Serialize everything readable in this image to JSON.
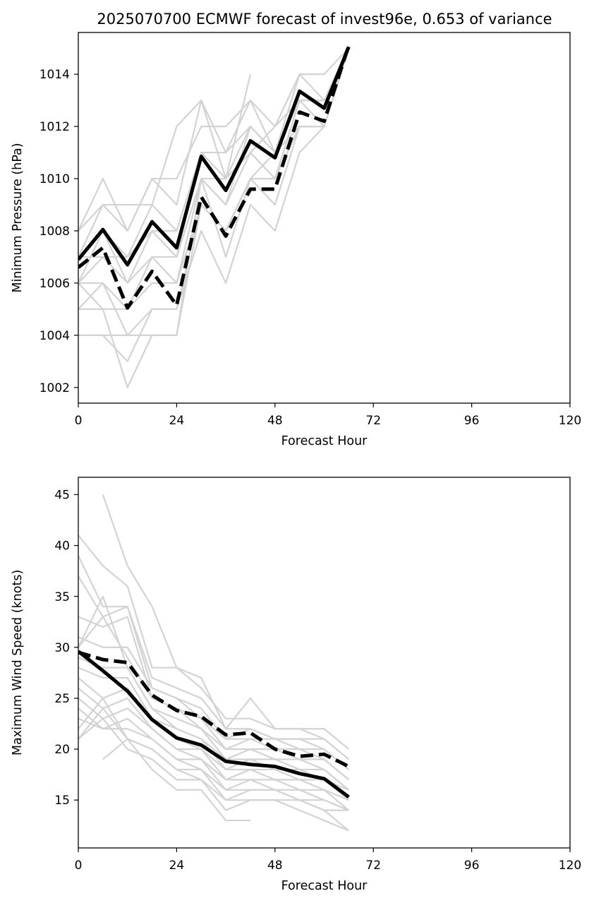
{
  "chart_data": [
    {
      "type": "line",
      "title": "2025070700 ECMWF forecast of invest96e, 0.653 of variance",
      "xlabel": "Forecast Hour",
      "ylabel": "Minimum Pressure (hPa)",
      "xlim": [
        0,
        120
      ],
      "ylim": [
        1001.4,
        1015.6
      ],
      "xticks": [
        "0",
        "24",
        "48",
        "72",
        "96",
        "120"
      ],
      "yticks": [
        "1002",
        "1004",
        "1006",
        "1008",
        "1010",
        "1012",
        "1014"
      ],
      "colors": {
        "ensemble": "#d3d3d3",
        "mean": "#000000"
      },
      "x": [
        0,
        6,
        12,
        18,
        24,
        30,
        36,
        42,
        48,
        54,
        60,
        66
      ],
      "series": [
        {
          "style": "solid",
          "values": [
            1006.9,
            1008.05,
            1006.7,
            1008.35,
            1007.35,
            1010.85,
            1009.55,
            1011.45,
            1010.8,
            1013.35,
            1012.7,
            1015.05
          ]
        },
        {
          "style": "dashed",
          "values": [
            1006.6,
            1007.35,
            1005.05,
            1006.45,
            1005.15,
            1009.3,
            1007.8,
            1009.6,
            1009.6,
            1012.55,
            1012.2,
            1015.1
          ]
        }
      ],
      "ensemble": [
        [
          1008,
          1010,
          1008,
          1010,
          1009,
          1013,
          1010,
          1014
        ],
        [
          1007,
          1009,
          1009,
          1009,
          1012,
          1013,
          1011,
          1013,
          1012,
          1014,
          1014,
          1015
        ],
        [
          1008,
          1009,
          1008,
          1010,
          1010,
          1012,
          1012,
          1013,
          1011,
          1013,
          1013,
          1015
        ],
        [
          1007,
          1008,
          1007,
          1009,
          1008,
          1011,
          1011,
          1012,
          1011,
          1013,
          1013,
          1015
        ],
        [
          1007,
          1008,
          1007,
          1008,
          1008,
          1011,
          1010,
          1012,
          1011,
          1014,
          1013,
          1015
        ],
        [
          1006,
          1008,
          1006,
          1008,
          1007,
          1011,
          1010,
          1011,
          1012,
          1013,
          1013,
          1015
        ],
        [
          1007,
          1007,
          1007,
          1008,
          1007,
          1010,
          1009,
          1012,
          1011,
          1013,
          1013,
          1015
        ],
        [
          1006,
          1007,
          1006,
          1007,
          1007,
          1010,
          1010,
          1011,
          1010,
          1013,
          1012,
          1015
        ],
        [
          1005,
          1006,
          1005,
          1007,
          1006,
          1010,
          1009,
          1011,
          1010,
          1013,
          1013,
          1015
        ],
        [
          1005,
          1005,
          1005,
          1006,
          1006,
          1009,
          1008,
          1010,
          1010,
          1012,
          1012,
          1015
        ],
        [
          1004,
          1004,
          1003,
          1005,
          1005,
          1009,
          1008,
          1010,
          1009,
          1012,
          1012,
          1015
        ],
        [
          1006,
          1006,
          1004,
          1005,
          1005,
          1008,
          1006,
          1009,
          1008,
          1011,
          1012,
          1015
        ],
        [
          1006,
          1005,
          1002,
          1004,
          1004,
          1010,
          1007,
          1010,
          1010,
          1012,
          1012,
          1015
        ],
        [
          1004,
          1004,
          1004,
          1004,
          1004,
          1009,
          1008,
          1010,
          1011,
          1012,
          1012,
          1015
        ]
      ]
    },
    {
      "type": "line",
      "title": "",
      "xlabel": "Forecast Hour",
      "ylabel": "Maximum Wind Speed (knots)",
      "xlim": [
        0,
        120
      ],
      "ylim": [
        10.3,
        46.7
      ],
      "xticks": [
        "0",
        "24",
        "48",
        "72",
        "96",
        "120"
      ],
      "yticks": [
        "15",
        "20",
        "25",
        "30",
        "35",
        "40",
        "45"
      ],
      "colors": {
        "ensemble": "#d3d3d3",
        "mean": "#000000"
      },
      "x": [
        0,
        6,
        12,
        18,
        24,
        30,
        36,
        42,
        48,
        54,
        60,
        66
      ],
      "series": [
        {
          "style": "solid",
          "values": [
            29.6,
            27.7,
            25.7,
            22.9,
            21.1,
            20.4,
            18.8,
            18.5,
            18.3,
            17.6,
            17.1,
            15.3
          ]
        },
        {
          "style": "dashed",
          "values": [
            29.5,
            28.8,
            28.5,
            25.3,
            23.8,
            23.2,
            21.4,
            21.6,
            20.0,
            19.3,
            19.5,
            18.3
          ]
        }
      ],
      "ensemble": [
        [
          null,
          45,
          38,
          34,
          28,
          27,
          22,
          25,
          22,
          22,
          22,
          20
        ],
        [
          41,
          38,
          36,
          28,
          28,
          26,
          23,
          23,
          22,
          22,
          21,
          19
        ],
        [
          39,
          34,
          34,
          27,
          26,
          25,
          22,
          22,
          21,
          21,
          21,
          19
        ],
        [
          37,
          33,
          34,
          26,
          25,
          24,
          21,
          22,
          21,
          21,
          20,
          18
        ],
        [
          33,
          32,
          33,
          25,
          24,
          23,
          21,
          21,
          21,
          20,
          20,
          18
        ],
        [
          31,
          30,
          30,
          26,
          25,
          23,
          20,
          21,
          20,
          20,
          19,
          17
        ],
        [
          30,
          33,
          29,
          25,
          24,
          22,
          20,
          20,
          20,
          19,
          19,
          17
        ],
        [
          30,
          35,
          28,
          24,
          23,
          22,
          19,
          20,
          19,
          19,
          18,
          16
        ],
        [
          29,
          28,
          28,
          24,
          22,
          21,
          19,
          19,
          19,
          18,
          18,
          16
        ],
        [
          28,
          27,
          27,
          23,
          22,
          21,
          18,
          19,
          18,
          18,
          17,
          16
        ],
        [
          27,
          25,
          26,
          23,
          21,
          20,
          18,
          18,
          18,
          17,
          17,
          15
        ],
        [
          26,
          24,
          25,
          22,
          20,
          20,
          17,
          18,
          17,
          17,
          16,
          15
        ],
        [
          25,
          23,
          24,
          22,
          20,
          19,
          17,
          17,
          17,
          16,
          16,
          14
        ],
        [
          24,
          22,
          23,
          21,
          19,
          19,
          16,
          17,
          16,
          16,
          15,
          14
        ],
        [
          23,
          22,
          22,
          21,
          19,
          18,
          16,
          16,
          16,
          15,
          15,
          14
        ],
        [
          22,
          25,
          21,
          20,
          18,
          18,
          15,
          16,
          16,
          15,
          14,
          14
        ],
        [
          21,
          24,
          21,
          20,
          18,
          17,
          15,
          15,
          15,
          15,
          14,
          12
        ],
        [
          21,
          23,
          20,
          19,
          17,
          17,
          14,
          15,
          15,
          14,
          13,
          12
        ],
        [
          null,
          19,
          21,
          18,
          16,
          16,
          13,
          13
        ]
      ]
    }
  ]
}
